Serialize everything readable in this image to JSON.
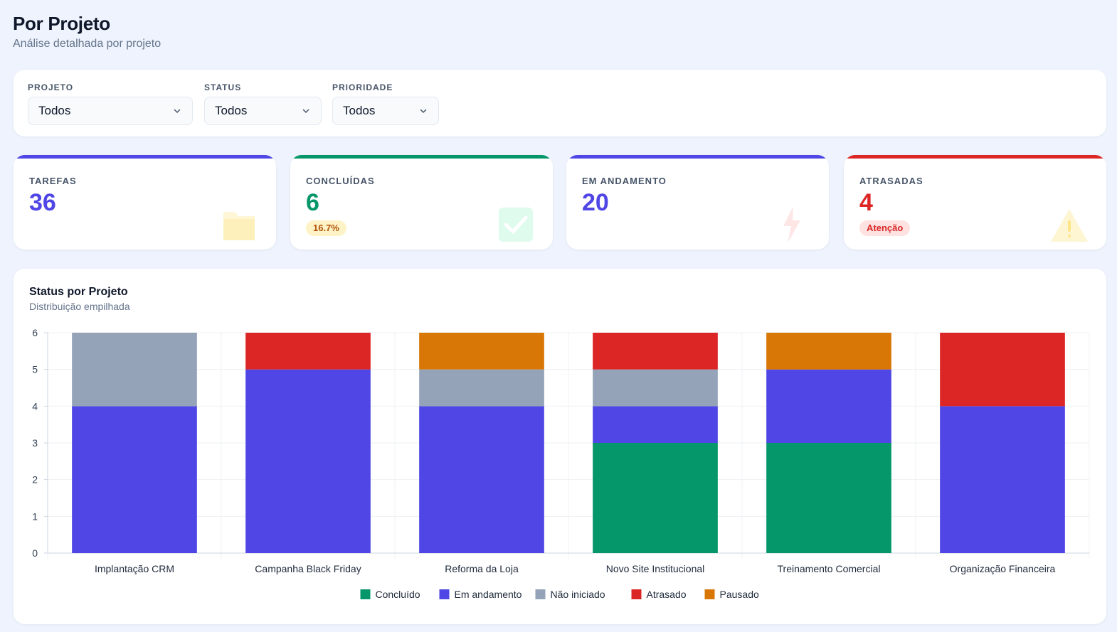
{
  "header": {
    "title": "Por Projeto",
    "subtitle": "Análise detalhada por projeto"
  },
  "filters": [
    {
      "label": "PROJETO",
      "value": "Todos"
    },
    {
      "label": "STATUS",
      "value": "Todos"
    },
    {
      "label": "PRIORIDADE",
      "value": "Todos"
    }
  ],
  "kpis": [
    {
      "label": "TAREFAS",
      "value": "36",
      "badge": "",
      "color": "#4f46e5",
      "icon": "folder-icon"
    },
    {
      "label": "CONCLUÍDAS",
      "value": "6",
      "badge": "16.7%",
      "color": "#059669",
      "icon": "check-icon"
    },
    {
      "label": "EM ANDAMENTO",
      "value": "20",
      "badge": "",
      "color": "#4f46e5",
      "icon": "lightning-icon"
    },
    {
      "label": "ATRASADAS",
      "value": "4",
      "badge": "Atenção",
      "color": "#dc2626",
      "icon": "warning-icon"
    }
  ],
  "chart": {
    "title": "Status por Projeto",
    "subtitle": "Distribuição empilhada"
  },
  "chart_data": {
    "type": "bar",
    "stacked": true,
    "categories": [
      "Implantação CRM",
      "Campanha Black Friday",
      "Reforma da Loja",
      "Novo Site Institucional",
      "Treinamento Comercial",
      "Organização Financeira"
    ],
    "series": [
      {
        "name": "Concluído",
        "color": "#059669",
        "values": [
          0,
          0,
          0,
          3,
          3,
          0
        ]
      },
      {
        "name": "Em andamento",
        "color": "#4f46e5",
        "values": [
          4,
          5,
          4,
          1,
          2,
          4
        ]
      },
      {
        "name": "Não iniciado",
        "color": "#94a3b8",
        "values": [
          2,
          0,
          1,
          1,
          0,
          0
        ]
      },
      {
        "name": "Atrasado",
        "color": "#dc2626",
        "values": [
          0,
          1,
          0,
          1,
          0,
          2
        ]
      },
      {
        "name": "Pausado",
        "color": "#d97706",
        "values": [
          0,
          0,
          1,
          0,
          1,
          0
        ]
      }
    ],
    "ylim": [
      0,
      6
    ],
    "yticks": [
      0,
      1,
      2,
      3,
      4,
      5,
      6
    ],
    "grid": true,
    "legend": "bottom-center"
  }
}
